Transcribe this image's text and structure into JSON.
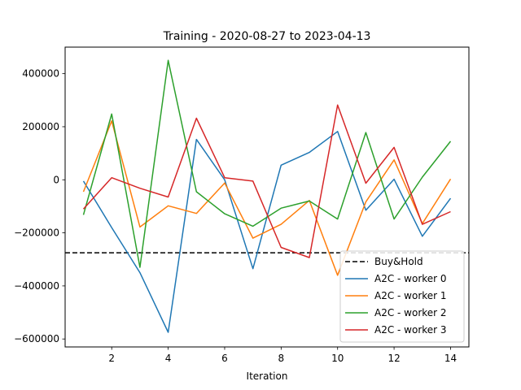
{
  "chart_data": {
    "type": "line",
    "title": "Training - 2020-08-27 to 2023-04-13",
    "xlabel": "Iteration",
    "ylabel": "",
    "xlim": [
      0.35,
      14.65
    ],
    "ylim": [
      -630000,
      500000
    ],
    "xticks": [
      2,
      4,
      6,
      8,
      10,
      12,
      14
    ],
    "yticks": [
      -600000,
      -400000,
      -200000,
      0,
      200000,
      400000
    ],
    "grid": false,
    "legend_position": "lower-right",
    "x": [
      1,
      2,
      3,
      4,
      5,
      6,
      7,
      8,
      9,
      10,
      11,
      12,
      13,
      14
    ],
    "hlines": [
      {
        "name": "Buy&Hold",
        "y": -275000,
        "color": "#000000",
        "style": "dashed"
      }
    ],
    "series": [
      {
        "name": "A2C - worker 0",
        "color": "#1f77b4",
        "values": [
          -5000,
          -180000,
          -350000,
          -575000,
          152000,
          0,
          -335000,
          55000,
          103000,
          182000,
          -115000,
          2000,
          -213000,
          -70000
        ]
      },
      {
        "name": "A2C - worker 1",
        "color": "#ff7f0e",
        "values": [
          -45000,
          222000,
          -178000,
          -98000,
          -127000,
          -12000,
          -220000,
          -168000,
          -78000,
          -360000,
          -83000,
          75000,
          -165000,
          3000
        ]
      },
      {
        "name": "A2C - worker 2",
        "color": "#2ca02c",
        "values": [
          -132000,
          248000,
          -330000,
          450000,
          -45000,
          -128000,
          -175000,
          -107000,
          -80000,
          -148000,
          178000,
          -148000,
          10000,
          145000
        ]
      },
      {
        "name": "A2C - worker 3",
        "color": "#d62728",
        "values": [
          -110000,
          8000,
          -32000,
          -65000,
          232000,
          8000,
          -5000,
          -255000,
          -293000,
          282000,
          -13000,
          122000,
          -168000,
          -120000
        ]
      }
    ]
  }
}
